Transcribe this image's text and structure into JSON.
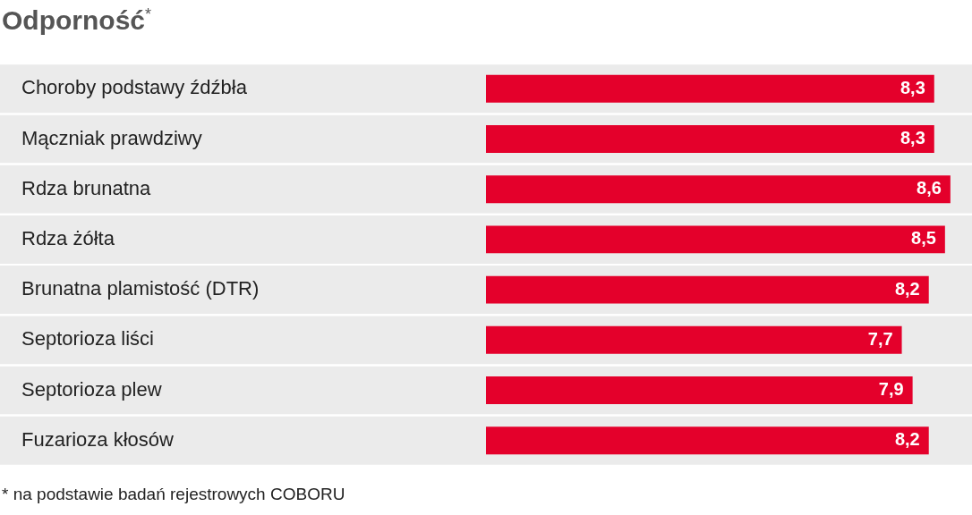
{
  "chart_data": {
    "type": "bar",
    "orientation": "horizontal",
    "title": "Odporność$^{*}$",
    "categories": [
      "Choroby podstawy źdźbła",
      "Mączniak prawdziwy",
      "Rdza brunatna",
      "Rdza żółta",
      "Brunatna plamistość (DTR)",
      "Septorioza liści",
      "Septorioza plew",
      "Fuzarioza kłosów"
    ],
    "values": [
      8.3,
      8.3,
      8.6,
      8.5,
      8.2,
      7.7,
      7.9,
      8.2
    ],
    "value_labels": [
      "8,3",
      "8,3",
      "8,6",
      "8,5",
      "8,2",
      "7,7",
      "7,9",
      "8,2"
    ],
    "color": "#e4002b",
    "tick_labels": "y",
    "annotations": [
      "* na podstawie badań rejestrowych COBORU"
    ]
  }
}
